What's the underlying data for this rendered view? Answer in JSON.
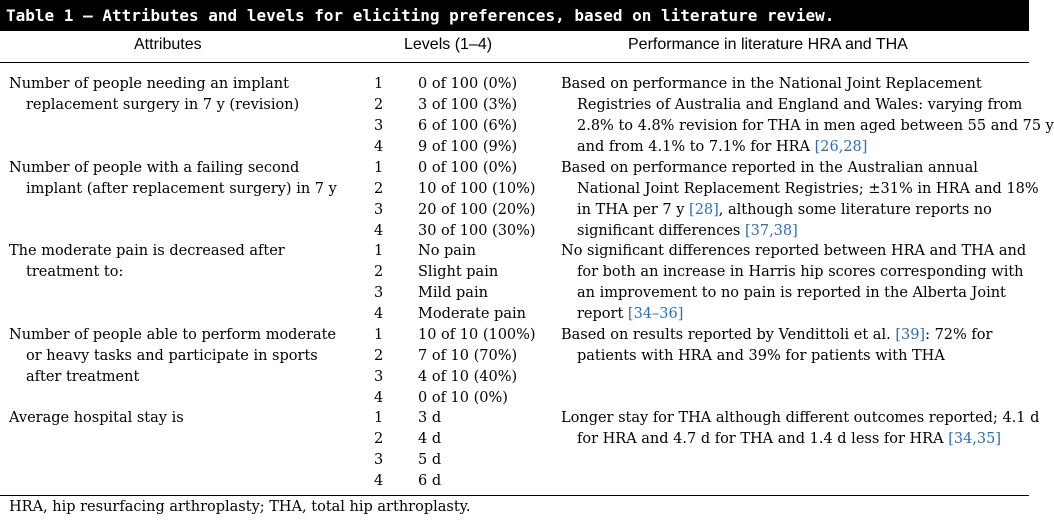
{
  "table": {
    "title": "Table 1 – Attributes and levels for eliciting preferences, based on literature review.",
    "headers": {
      "attributes": "Attributes",
      "levels": "Levels (1–4)",
      "performance": "Performance in literature HRA and THA"
    },
    "rows": [
      {
        "attribute": [
          "Number of people needing an implant",
          "replacement surgery in 7 y (revision)"
        ],
        "levels": [
          {
            "n": "1",
            "v": "0 of 100 (0%)"
          },
          {
            "n": "2",
            "v": "3 of 100 (3%)"
          },
          {
            "n": "3",
            "v": "6 of 100 (6%)"
          },
          {
            "n": "4",
            "v": "9 of 100 (9%)"
          }
        ],
        "performance": [
          [
            "Based on performance in the National Joint Replacement"
          ],
          [
            "Registries of Australia and England and Wales: varying from"
          ],
          [
            "2.8% to 4.8% revision for THA in men aged between 55 and 75 y"
          ],
          [
            "and from 4.1% to 7.1% for HRA ",
            {
              "ref": "[26,28]"
            }
          ]
        ]
      },
      {
        "attribute": [
          "Number of people with a failing second",
          "implant (after replacement surgery) in 7 y"
        ],
        "levels": [
          {
            "n": "1",
            "v": "0 of 100 (0%)"
          },
          {
            "n": "2",
            "v": "10 of 100 (10%)"
          },
          {
            "n": "3",
            "v": "20 of 100 (20%)"
          },
          {
            "n": "4",
            "v": "30 of 100 (30%)"
          }
        ],
        "performance": [
          [
            "Based on performance reported in the Australian annual"
          ],
          [
            "National Joint Replacement Registries; ±31% in HRA and 18%"
          ],
          [
            "in THA per 7 y ",
            {
              "ref": "[28]"
            },
            ", although some literature reports no"
          ],
          [
            "significant differences ",
            {
              "ref": "[37,38]"
            }
          ]
        ]
      },
      {
        "attribute": [
          "The moderate pain is decreased after",
          "treatment to:"
        ],
        "levels": [
          {
            "n": "1",
            "v": "No pain"
          },
          {
            "n": "2",
            "v": "Slight pain"
          },
          {
            "n": "3",
            "v": "Mild pain"
          },
          {
            "n": "4",
            "v": "Moderate pain"
          }
        ],
        "performance": [
          [
            "No significant differences reported between HRA and THA and"
          ],
          [
            "for both an increase in Harris hip scores corresponding with"
          ],
          [
            "an improvement to no pain is reported in the Alberta Joint"
          ],
          [
            "report ",
            {
              "ref": "[34–36]"
            }
          ]
        ]
      },
      {
        "attribute": [
          "Number of people able to perform moderate",
          "or heavy tasks and participate in sports",
          "after treatment"
        ],
        "levels": [
          {
            "n": "1",
            "v": "10 of 10 (100%)"
          },
          {
            "n": "2",
            "v": "7 of 10 (70%)"
          },
          {
            "n": "3",
            "v": "4 of 10 (40%)"
          },
          {
            "n": "4",
            "v": "0 of 10 (0%)"
          }
        ],
        "performance": [
          [
            "Based on results reported by Vendittoli et al. ",
            {
              "ref": "[39]"
            },
            ": 72% for"
          ],
          [
            "patients with HRA and 39% for patients with THA"
          ]
        ]
      },
      {
        "attribute": [
          "Average hospital stay is"
        ],
        "levels": [
          {
            "n": "1",
            "v": "3 d"
          },
          {
            "n": "2",
            "v": "4 d"
          },
          {
            "n": "3",
            "v": "5 d"
          },
          {
            "n": "4",
            "v": "6 d"
          }
        ],
        "performance": [
          [
            "Longer stay for THA although different outcomes reported; 4.1 d"
          ],
          [
            "for HRA and 4.7 d for THA and 1.4 d less for HRA ",
            {
              "ref": "[34,35]"
            }
          ]
        ]
      }
    ],
    "footnote": "HRA, hip resurfacing arthroplasty; THA, total hip arthroplasty."
  },
  "colors": {
    "title_bg": "#000000",
    "title_fg": "#ffffff",
    "reference_link": "#2a6ebb"
  }
}
